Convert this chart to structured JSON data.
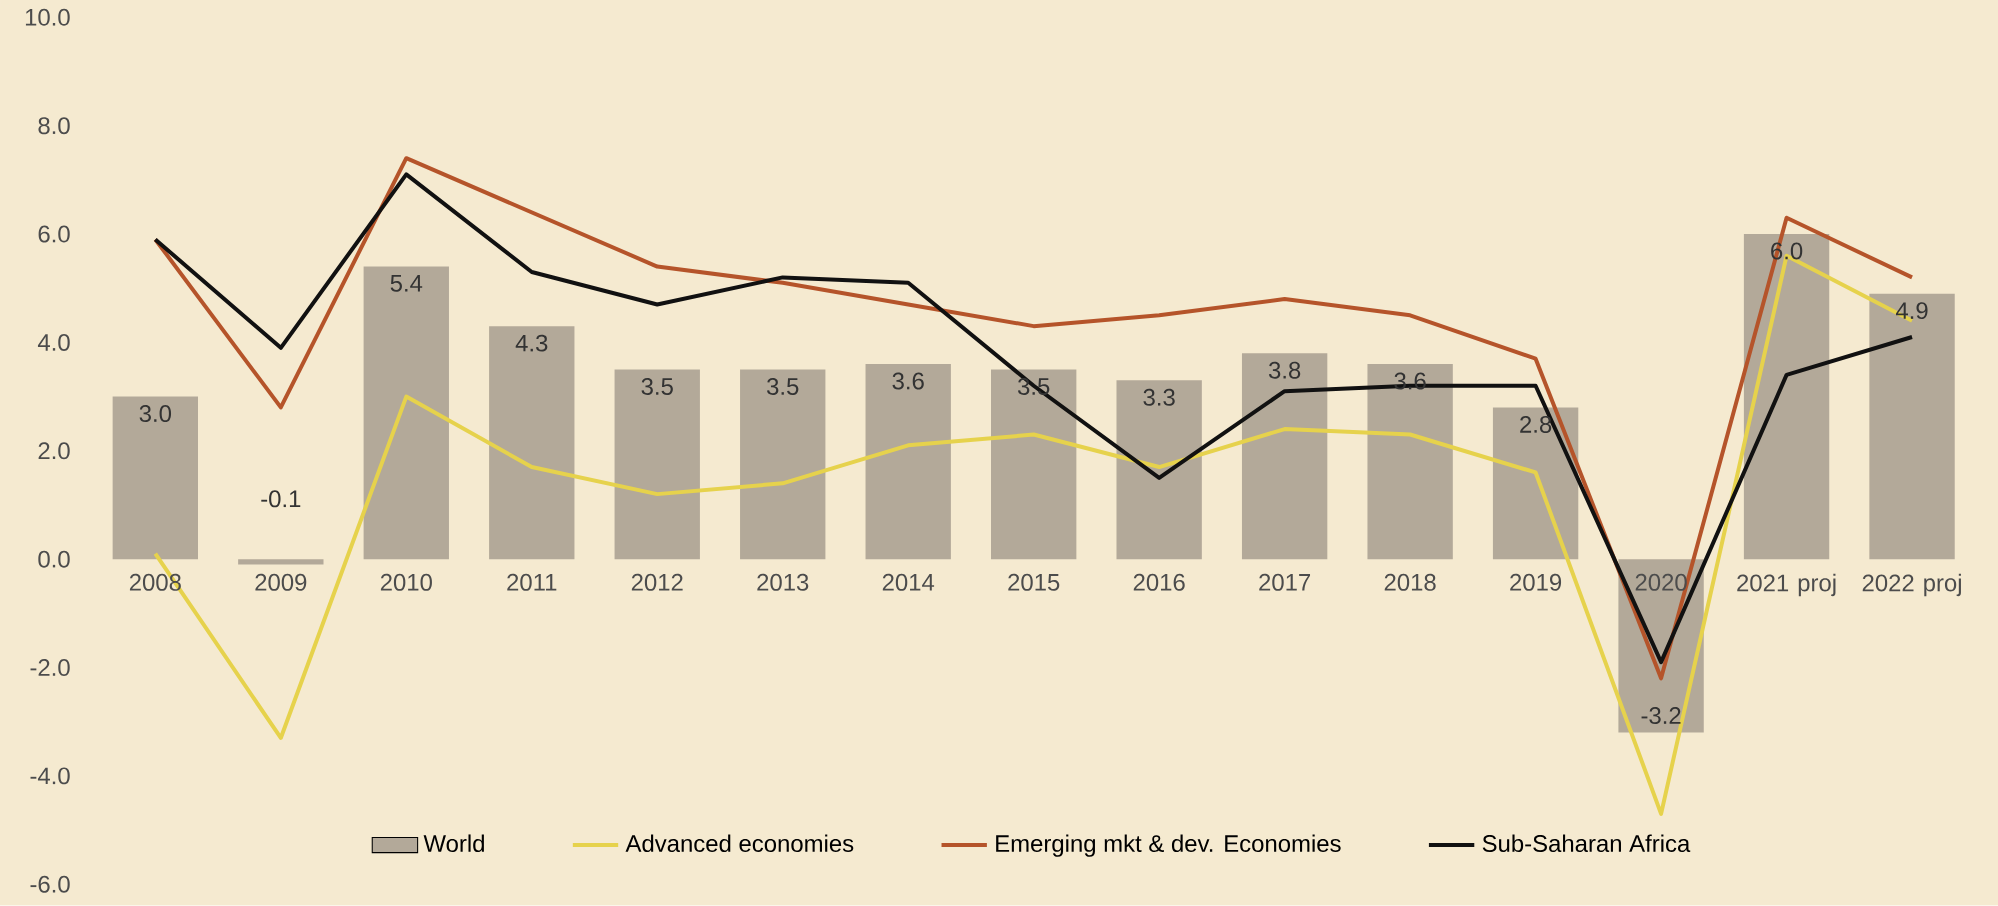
{
  "chart_data": {
    "type": "bar",
    "categories": [
      "2008",
      "2009",
      "2010",
      "2011",
      "2012",
      "2013",
      "2014",
      "2015",
      "2016",
      "2017",
      "2018",
      "2019",
      "2020",
      "2021 proj",
      "2022 proj"
    ],
    "series": [
      {
        "name": "World",
        "color": "#b3a999",
        "values": [
          3.0,
          -0.1,
          5.4,
          4.3,
          3.5,
          3.5,
          3.6,
          3.5,
          3.3,
          3.8,
          3.6,
          2.8,
          -3.2,
          6.0,
          4.9
        ],
        "value_labels": [
          "3.0",
          "-0.1",
          "5.4",
          "4.3",
          "3.5",
          "3.5",
          "3.6",
          "3.5",
          "3.3",
          "3.8",
          "3.6",
          "2.8",
          "-3.2",
          "6.0",
          "4.9"
        ]
      },
      {
        "name": "Advanced economies",
        "type": "line",
        "color": "#e6d24c",
        "values": [
          0.1,
          -3.3,
          3.0,
          1.7,
          1.2,
          1.4,
          2.1,
          2.3,
          1.7,
          2.4,
          2.3,
          1.6,
          -4.7,
          5.6,
          4.4
        ]
      },
      {
        "name": "Emerging mkt & dev. Economies",
        "type": "line",
        "color": "#b5542a",
        "values": [
          5.9,
          2.8,
          7.4,
          6.4,
          5.4,
          5.1,
          4.7,
          4.3,
          4.5,
          4.8,
          4.5,
          3.7,
          -2.2,
          6.3,
          5.2
        ]
      },
      {
        "name": "Sub-Saharan Africa",
        "type": "line",
        "color": "#111111",
        "values": [
          5.9,
          3.9,
          7.1,
          5.3,
          4.7,
          5.2,
          5.1,
          3.2,
          1.5,
          3.1,
          3.2,
          3.2,
          -1.9,
          3.4,
          4.1
        ]
      }
    ],
    "ylim": [
      -6,
      10
    ],
    "yticks": [
      {
        "value": -6,
        "label": "-6.0"
      },
      {
        "value": -4,
        "label": "-4.0"
      },
      {
        "value": -2,
        "label": "-2.0"
      },
      {
        "value": 0,
        "label": "0.0"
      },
      {
        "value": 2,
        "label": "2.0"
      },
      {
        "value": 4,
        "label": "4.0"
      },
      {
        "value": 6,
        "label": "6.0"
      },
      {
        "value": 8,
        "label": "8.0"
      },
      {
        "value": 10,
        "label": "10.0"
      }
    ],
    "legend": "bottom",
    "grid": false
  }
}
